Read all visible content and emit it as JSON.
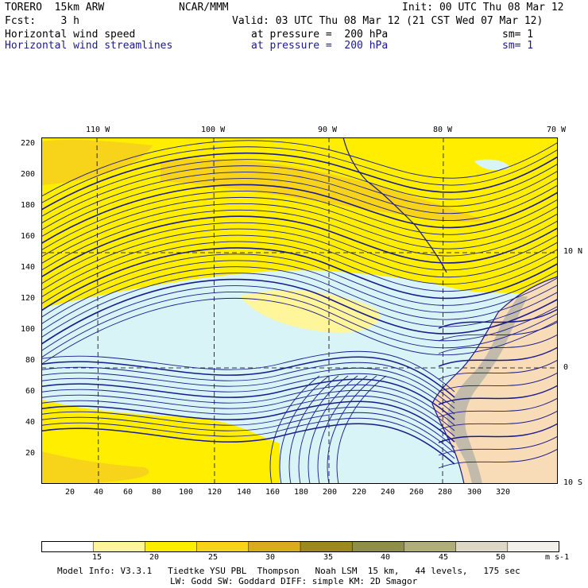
{
  "header": {
    "model": "TORERO  15km ARW",
    "center": "NCAR/MMM",
    "init": "Init: 00 UTC Thu 08 Mar 12",
    "fcst": "Fcst:    3 h",
    "valid": "Valid: 03 UTC Thu 08 Mar 12 (21 CST Wed 07 Mar 12)",
    "field1": "Horizontal wind speed",
    "field1_level": "at pressure =  200 hPa",
    "field1_sm": "sm= 1",
    "field2": "Horizontal wind streamlines",
    "field2_level": "at pressure =  200 hPa",
    "field2_sm": "sm= 1"
  },
  "axes": {
    "top_lon": [
      "110 W",
      "100 W",
      "90 W",
      "80 W",
      "70 W"
    ],
    "right_lat": [
      "10 N",
      "0",
      "10 S"
    ],
    "left_y": [
      "220",
      "200",
      "180",
      "160",
      "140",
      "120",
      "100",
      "80",
      "60",
      "40",
      "20"
    ],
    "bottom_x": [
      "20",
      "40",
      "60",
      "80",
      "100",
      "120",
      "140",
      "160",
      "180",
      "200",
      "220",
      "240",
      "260",
      "280",
      "300",
      "320"
    ]
  },
  "colorbar": {
    "labels": [
      "15",
      "20",
      "25",
      "30",
      "35",
      "40",
      "45",
      "50"
    ],
    "units": "m s-1",
    "colors": [
      "#ffffff",
      "#fff59a",
      "#ffee00",
      "#f7d31a",
      "#d9ac1e",
      "#9c8a1e",
      "#8f8f4a",
      "#b0ae78",
      "#ddd8c6",
      "#f2f0ea"
    ]
  },
  "footer": {
    "line1": "Model Info: V3.3.1   Tiedtke YSU PBL  Thompson   Noah LSM  15 km,   44 levels,   175 sec",
    "line2": "LW: Godd SW: Goddard DIFF: simple KM: 2D Smagor"
  },
  "map_colors": {
    "calm": "#d8f4f6",
    "moderate": "#ffee00",
    "strong": "#f7d31a",
    "land": "#f8dcb8",
    "streamline": "#1a1a8c"
  }
}
